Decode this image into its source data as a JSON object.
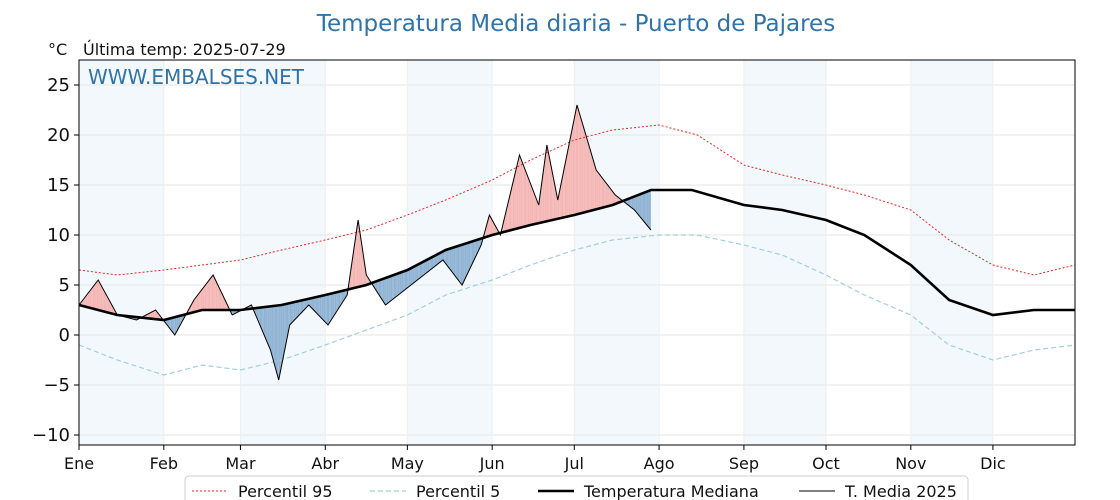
{
  "chart_data": {
    "type": "line",
    "title": "Temperatura Media diaria - Puerto de Pajares",
    "unit_label": "°C",
    "last_temp_label": "Última temp: 2025-07-29",
    "watermark": "WWW.EMBALSES.NET",
    "months": [
      "Ene",
      "Feb",
      "Mar",
      "Abr",
      "May",
      "Jun",
      "Jul",
      "Ago",
      "Sep",
      "Oct",
      "Nov",
      "Dic"
    ],
    "month_days": [
      31,
      28,
      31,
      30,
      31,
      30,
      31,
      31,
      30,
      31,
      30,
      31
    ],
    "ylim": [
      -11,
      27.5
    ],
    "yticks": [
      25,
      20,
      15,
      10,
      5,
      0,
      -5,
      -10
    ],
    "ytick_labels": [
      "25",
      "20",
      "15",
      "10",
      "5",
      "0",
      "−5",
      "−10"
    ],
    "grid": true,
    "legend_position": "bottom-center",
    "series": [
      {
        "name": "Percentil 95",
        "color": "#e8281f",
        "style": "dotted",
        "doy": [
          1,
          15,
          32,
          46,
          60,
          75,
          91,
          106,
          121,
          135,
          152,
          166,
          182,
          196,
          213,
          227,
          244,
          258,
          274,
          288,
          305,
          319,
          335,
          350,
          365
        ],
        "values": [
          6.5,
          6.0,
          6.5,
          7.0,
          7.5,
          8.5,
          9.5,
          10.5,
          12.0,
          13.5,
          15.5,
          17.5,
          19.5,
          20.5,
          21.0,
          20.0,
          17.0,
          16.0,
          15.0,
          14.0,
          12.5,
          9.5,
          7.0,
          6.0,
          7.0
        ]
      },
      {
        "name": "Percentil 5",
        "color": "#9fcfe0",
        "style": "dashed",
        "doy": [
          1,
          15,
          32,
          46,
          60,
          75,
          91,
          106,
          121,
          135,
          152,
          166,
          182,
          196,
          213,
          227,
          244,
          258,
          274,
          288,
          305,
          319,
          335,
          350,
          365
        ],
        "values": [
          -1.0,
          -2.5,
          -4.0,
          -3.0,
          -3.5,
          -2.5,
          -1.0,
          0.5,
          2.0,
          4.0,
          5.5,
          7.0,
          8.5,
          9.5,
          10.0,
          10.0,
          9.0,
          8.0,
          6.0,
          4.0,
          2.0,
          -1.0,
          -2.5,
          -1.5,
          -1.0
        ]
      },
      {
        "name": "Temperatura Mediana",
        "color": "#000000",
        "style": "thick",
        "doy": [
          1,
          15,
          32,
          46,
          60,
          75,
          91,
          106,
          121,
          135,
          152,
          166,
          182,
          196,
          210,
          225,
          244,
          258,
          274,
          288,
          305,
          319,
          335,
          350,
          365
        ],
        "values": [
          3.0,
          2.0,
          1.5,
          2.5,
          2.5,
          3.0,
          4.0,
          5.0,
          6.5,
          8.5,
          10.0,
          11.0,
          12.0,
          13.0,
          14.5,
          14.5,
          13.0,
          12.5,
          11.5,
          10.0,
          7.0,
          3.5,
          2.0,
          2.5,
          2.5
        ]
      },
      {
        "name": "T. Media 2025",
        "color": "#000000",
        "style": "thin",
        "doy": [
          1,
          8,
          15,
          22,
          29,
          36,
          43,
          50,
          57,
          64,
          71,
          74,
          78,
          85,
          92,
          99,
          103,
          106,
          113,
          120,
          127,
          134,
          141,
          148,
          151,
          155,
          162,
          169,
          172,
          176,
          183,
          190,
          197,
          204,
          210
        ],
        "values": [
          3.0,
          5.5,
          2.0,
          1.5,
          2.5,
          0.0,
          3.5,
          6.0,
          2.0,
          3.0,
          -1.5,
          -4.5,
          1.0,
          3.0,
          1.0,
          4.0,
          11.5,
          6.0,
          3.0,
          4.5,
          6.0,
          7.5,
          5.0,
          9.0,
          12.0,
          10.0,
          18.0,
          13.0,
          19.0,
          13.5,
          23.0,
          16.5,
          14.0,
          12.5,
          10.5
        ]
      }
    ]
  }
}
